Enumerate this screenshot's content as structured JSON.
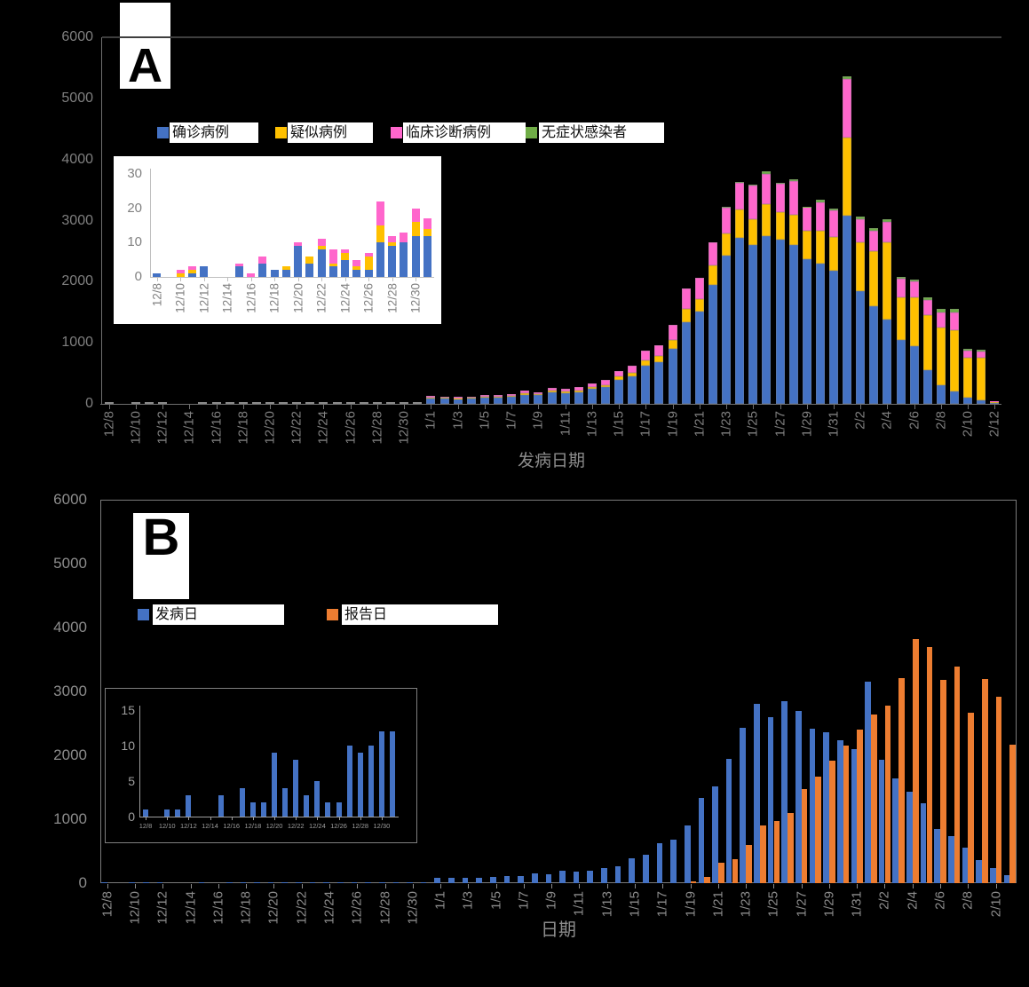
{
  "background": "#000000",
  "colors": {
    "confirmed_blue": "#4472C4",
    "suspected_yellow": "#FFC000",
    "clinical_pink": "#FF66CC",
    "asymptomatic_green": "#70AD47",
    "report_orange": "#ED7D31",
    "axis_text_gray": "#7F7F7F",
    "axis_line_gray": "#6F6F6F"
  },
  "panel_a": {
    "letter": "A",
    "x_axis_title": "发病日期",
    "y_ticks": [
      0,
      1000,
      2000,
      3000,
      4000,
      5000,
      6000
    ],
    "x_tick_labels": [
      "12/8",
      "12/10",
      "12/12",
      "12/14",
      "12/16",
      "12/18",
      "12/20",
      "12/22",
      "12/24",
      "12/26",
      "12/28",
      "12/30",
      "1/1",
      "1/3",
      "1/5",
      "1/7",
      "1/9",
      "1/11",
      "1/13",
      "1/15",
      "1/17",
      "1/19",
      "1/21",
      "1/23",
      "1/25",
      "1/27",
      "1/29",
      "1/31",
      "2/2",
      "2/4",
      "2/6",
      "2/8",
      "2/10",
      "2/12"
    ],
    "legend": [
      {
        "label": "确诊病例",
        "color": "#4472C4"
      },
      {
        "label": "疑似病例",
        "color": "#FFC000"
      },
      {
        "label": "临床诊断病例",
        "color": "#FF66CC"
      },
      {
        "label": "无症状感染者",
        "color": "#70AD47"
      }
    ],
    "inset": {
      "y_ticks": [
        0,
        10,
        20,
        30
      ],
      "x_tick_labels": [
        "12/8",
        "12/10",
        "12/12",
        "12/14",
        "12/16",
        "12/18",
        "12/20",
        "12/22",
        "12/24",
        "12/26",
        "12/28",
        "12/30"
      ]
    }
  },
  "panel_b": {
    "letter": "B",
    "x_axis_title": "日期",
    "y_ticks": [
      0,
      1000,
      2000,
      3000,
      4000,
      5000,
      6000
    ],
    "x_tick_labels": [
      "12/8",
      "12/10",
      "12/12",
      "12/14",
      "12/16",
      "12/18",
      "12/20",
      "12/22",
      "12/24",
      "12/26",
      "12/28",
      "12/30",
      "1/1",
      "1/3",
      "1/5",
      "1/7",
      "1/9",
      "1/11",
      "1/13",
      "1/15",
      "1/17",
      "1/19",
      "1/21",
      "1/23",
      "1/25",
      "1/27",
      "1/29",
      "1/31",
      "2/2",
      "2/4",
      "2/6",
      "2/8",
      "2/10"
    ],
    "legend": [
      {
        "label": "发病日",
        "color": "#4472C4"
      },
      {
        "label": "报告日",
        "color": "#ED7D31"
      }
    ],
    "inset": {
      "y_ticks": [
        0,
        5,
        10,
        15
      ],
      "x_tick_labels": [
        "12/8",
        "12/10",
        "12/12",
        "12/14",
        "12/16",
        "12/18",
        "12/20",
        "12/22",
        "12/24",
        "12/26",
        "12/28",
        "12/30"
      ]
    }
  },
  "chart_data": [
    {
      "id": "panel-a-main",
      "type": "bar",
      "stacked": true,
      "title": "A",
      "xlabel": "发病日期",
      "ylabel": "",
      "ylim": [
        0,
        6000
      ],
      "grid": false,
      "legend_position": "top",
      "categories": [
        "12/8",
        "12/9",
        "12/10",
        "12/11",
        "12/12",
        "12/13",
        "12/14",
        "12/15",
        "12/16",
        "12/17",
        "12/18",
        "12/19",
        "12/20",
        "12/21",
        "12/22",
        "12/23",
        "12/24",
        "12/25",
        "12/26",
        "12/27",
        "12/28",
        "12/29",
        "12/30",
        "12/31",
        "1/1",
        "1/2",
        "1/3",
        "1/4",
        "1/5",
        "1/6",
        "1/7",
        "1/8",
        "1/9",
        "1/10",
        "1/11",
        "1/12",
        "1/13",
        "1/14",
        "1/15",
        "1/16",
        "1/17",
        "1/18",
        "1/19",
        "1/20",
        "1/21",
        "1/22",
        "1/23",
        "1/24",
        "1/25",
        "1/26",
        "1/27",
        "1/28",
        "1/29",
        "1/30",
        "1/31",
        "2/1",
        "2/2",
        "2/3",
        "2/4",
        "2/5",
        "2/6",
        "2/7",
        "2/8",
        "2/9",
        "2/10",
        "2/11",
        "2/12"
      ],
      "series": [
        {
          "name": "确诊病例",
          "color": "#4472C4",
          "values": [
            1,
            0,
            0,
            1,
            3,
            0,
            0,
            3,
            0,
            4,
            2,
            2,
            9,
            4,
            8,
            3,
            5,
            2,
            2,
            10,
            9,
            10,
            12,
            12,
            90,
            85,
            80,
            85,
            100,
            105,
            115,
            150,
            140,
            190,
            175,
            195,
            240,
            270,
            390,
            450,
            620,
            680,
            900,
            1330,
            1515,
            1950,
            2430,
            2710,
            2600,
            2745,
            2690,
            2600,
            2370,
            2300,
            2180,
            3075,
            1850,
            1600,
            1380,
            1050,
            950,
            550,
            300,
            200,
            100,
            60,
            10
          ]
        },
        {
          "name": "疑似病例",
          "color": "#FFC000",
          "values": [
            0,
            0,
            1,
            1,
            0,
            0,
            0,
            0,
            0,
            0,
            0,
            1,
            0,
            2,
            1,
            1,
            2,
            1,
            4,
            5,
            1,
            0,
            4,
            2,
            15,
            12,
            12,
            13,
            15,
            15,
            18,
            22,
            20,
            28,
            25,
            28,
            35,
            40,
            55,
            65,
            95,
            105,
            145,
            230,
            200,
            310,
            365,
            470,
            425,
            520,
            445,
            500,
            460,
            540,
            555,
            1285,
            800,
            895,
            1260,
            700,
            800,
            900,
            950,
            1000,
            650,
            700,
            30
          ]
        },
        {
          "name": "临床诊断病例",
          "color": "#FF66CC",
          "values": [
            0,
            0,
            1,
            1,
            0,
            0,
            0,
            1,
            1,
            2,
            0,
            0,
            1,
            0,
            2,
            4,
            1,
            2,
            1,
            7,
            2,
            3,
            4,
            3,
            25,
            23,
            20,
            22,
            25,
            25,
            30,
            40,
            35,
            50,
            45,
            52,
            65,
            75,
            95,
            115,
            160,
            175,
            245,
            330,
            350,
            390,
            415,
            440,
            550,
            500,
            475,
            545,
            390,
            465,
            425,
            955,
            375,
            340,
            340,
            300,
            250,
            250,
            250,
            300,
            120,
            100,
            10
          ]
        },
        {
          "name": "无症状感染者",
          "color": "#70AD47",
          "values": [
            0,
            0,
            0,
            0,
            0,
            0,
            0,
            0,
            0,
            0,
            0,
            0,
            0,
            0,
            0,
            0,
            0,
            0,
            0,
            0,
            0,
            0,
            0,
            0,
            0,
            0,
            0,
            0,
            0,
            0,
            0,
            0,
            0,
            0,
            0,
            0,
            0,
            0,
            0,
            0,
            0,
            0,
            0,
            0,
            0,
            0,
            10,
            10,
            10,
            35,
            10,
            35,
            10,
            35,
            35,
            40,
            40,
            40,
            35,
            30,
            30,
            50,
            50,
            50,
            30,
            30,
            0
          ]
        }
      ]
    },
    {
      "id": "panel-a-inset",
      "type": "bar",
      "stacked": true,
      "ylim": [
        0,
        30
      ],
      "categories": [
        "12/8",
        "12/9",
        "12/10",
        "12/11",
        "12/12",
        "12/13",
        "12/14",
        "12/15",
        "12/16",
        "12/17",
        "12/18",
        "12/19",
        "12/20",
        "12/21",
        "12/22",
        "12/23",
        "12/24",
        "12/25",
        "12/26",
        "12/27",
        "12/28",
        "12/29",
        "12/30",
        "12/31"
      ],
      "series": [
        {
          "name": "确诊病例",
          "color": "#4472C4",
          "values": [
            1,
            0,
            0,
            1,
            3,
            0,
            0,
            3,
            0,
            4,
            2,
            2,
            9,
            4,
            8,
            3,
            5,
            2,
            2,
            10,
            9,
            10,
            12,
            12
          ]
        },
        {
          "name": "疑似病例",
          "color": "#FFC000",
          "values": [
            0,
            0,
            1,
            1,
            0,
            0,
            0,
            0,
            0,
            0,
            0,
            1,
            0,
            2,
            1,
            1,
            2,
            1,
            4,
            5,
            1,
            0,
            4,
            2
          ]
        },
        {
          "name": "临床诊断病例",
          "color": "#FF66CC",
          "values": [
            0,
            0,
            1,
            1,
            0,
            0,
            0,
            1,
            1,
            2,
            0,
            0,
            1,
            0,
            2,
            4,
            1,
            2,
            1,
            7,
            2,
            3,
            4,
            3
          ]
        }
      ]
    },
    {
      "id": "panel-b-main",
      "type": "bar",
      "stacked": false,
      "title": "B",
      "xlabel": "日期",
      "ylabel": "",
      "ylim": [
        0,
        6000
      ],
      "grid": false,
      "legend_position": "top",
      "categories": [
        "12/8",
        "12/9",
        "12/10",
        "12/11",
        "12/12",
        "12/13",
        "12/14",
        "12/15",
        "12/16",
        "12/17",
        "12/18",
        "12/19",
        "12/20",
        "12/21",
        "12/22",
        "12/23",
        "12/24",
        "12/25",
        "12/26",
        "12/27",
        "12/28",
        "12/29",
        "12/30",
        "12/31",
        "1/1",
        "1/2",
        "1/3",
        "1/4",
        "1/5",
        "1/6",
        "1/7",
        "1/8",
        "1/9",
        "1/10",
        "1/11",
        "1/12",
        "1/13",
        "1/14",
        "1/15",
        "1/16",
        "1/17",
        "1/18",
        "1/19",
        "1/20",
        "1/21",
        "1/22",
        "1/23",
        "1/24",
        "1/25",
        "1/26",
        "1/27",
        "1/28",
        "1/29",
        "1/30",
        "1/31",
        "2/1",
        "2/2",
        "2/3",
        "2/4",
        "2/5",
        "2/6",
        "2/7",
        "2/8",
        "2/9",
        "2/10",
        "2/11"
      ],
      "series": [
        {
          "name": "发病日",
          "color": "#4472C4",
          "values": [
            1,
            0,
            1,
            1,
            3,
            0,
            0,
            3,
            0,
            4,
            2,
            2,
            9,
            4,
            8,
            3,
            5,
            2,
            2,
            10,
            9,
            10,
            12,
            12,
            90,
            85,
            80,
            85,
            100,
            105,
            115,
            150,
            140,
            190,
            175,
            195,
            240,
            270,
            390,
            450,
            620,
            680,
            900,
            1330,
            1515,
            1950,
            2430,
            2800,
            2600,
            2850,
            2690,
            2420,
            2360,
            2240,
            2100,
            3150,
            1930,
            1640,
            1430,
            1250,
            845,
            735,
            555,
            365,
            230,
            125
          ]
        },
        {
          "name": "报告日",
          "color": "#ED7D31",
          "values": [
            0,
            0,
            0,
            0,
            0,
            0,
            0,
            0,
            0,
            0,
            0,
            0,
            0,
            0,
            0,
            0,
            0,
            0,
            0,
            0,
            0,
            0,
            0,
            0,
            0,
            0,
            0,
            0,
            0,
            0,
            0,
            0,
            0,
            0,
            0,
            0,
            0,
            0,
            0,
            0,
            0,
            0,
            30,
            100,
            320,
            370,
            600,
            900,
            970,
            1100,
            1470,
            1660,
            1910,
            2150,
            2400,
            2640,
            2775,
            3205,
            3815,
            3690,
            3180,
            3390,
            2660,
            3195,
            2915,
            2160
          ]
        }
      ]
    },
    {
      "id": "panel-b-inset",
      "type": "bar",
      "stacked": false,
      "ylim": [
        0,
        15
      ],
      "categories": [
        "12/8",
        "12/9",
        "12/10",
        "12/11",
        "12/12",
        "12/13",
        "12/14",
        "12/15",
        "12/16",
        "12/17",
        "12/18",
        "12/19",
        "12/20",
        "12/21",
        "12/22",
        "12/23",
        "12/24",
        "12/25",
        "12/26",
        "12/27",
        "12/28",
        "12/29",
        "12/30",
        "12/31"
      ],
      "series": [
        {
          "name": "发病日",
          "color": "#4472C4",
          "values": [
            1,
            0,
            1,
            1,
            3,
            0,
            0,
            3,
            0,
            4,
            2,
            2,
            9,
            4,
            8,
            3,
            5,
            2,
            2,
            10,
            9,
            10,
            12,
            12
          ]
        }
      ]
    }
  ]
}
